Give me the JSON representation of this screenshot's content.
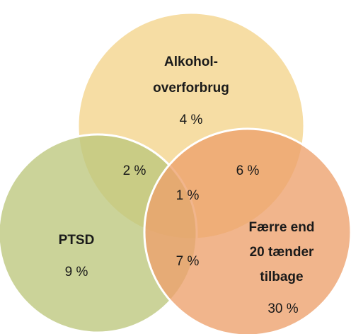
{
  "sets": [
    {
      "label": [
        "Alkohol-",
        "overforbrug"
      ],
      "value": "4 %",
      "color": "#f3d48a"
    },
    {
      "label": [
        "PTSD"
      ],
      "value": "9 %",
      "color": "#bcc67c"
    },
    {
      "label": [
        "Færre end",
        "20 tænder",
        "tilbage"
      ],
      "value": "30 %",
      "color": "#eda06c"
    }
  ],
  "intersections": [
    {
      "sets": [
        0,
        1
      ],
      "value": "2 %"
    },
    {
      "sets": [
        0,
        2
      ],
      "value": "6 %"
    },
    {
      "sets": [
        0,
        1,
        2
      ],
      "value": "1 %"
    },
    {
      "sets": [
        1,
        2
      ],
      "value": "7 %"
    }
  ]
}
